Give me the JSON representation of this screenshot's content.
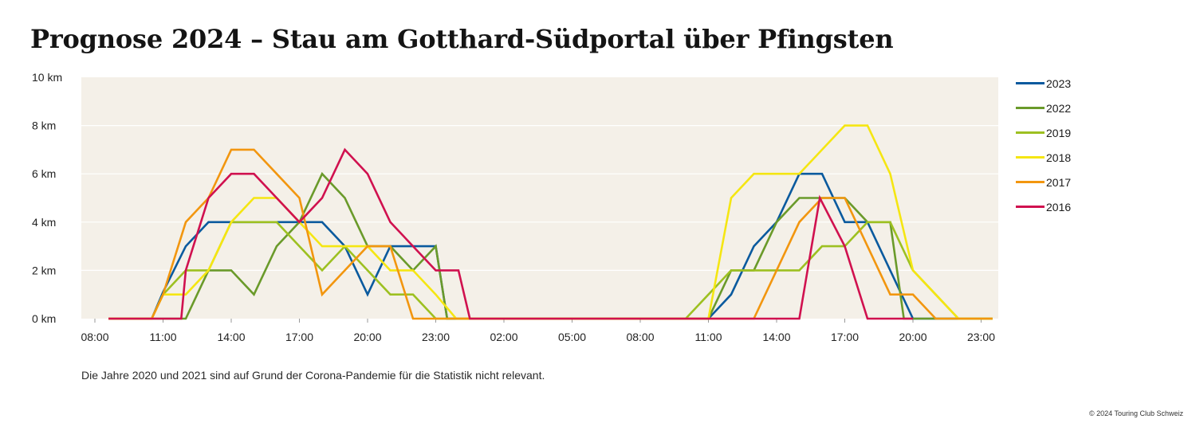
{
  "header": {
    "title": "Prognose 2024 – Stau am Gotthard-Südportal über Pfingsten"
  },
  "footnote": "Die Jahre 2020 und 2021 sind auf Grund der Corona-Pandemie für die Statistik nicht relevant.",
  "copyright": "© 2024 Touring Club Schweiz",
  "chart_data": {
    "type": "line",
    "title": "Prognose 2024 – Stau am Gotthard-Südportal über Pfingsten",
    "xlabel": "",
    "ylabel": "",
    "grid": "horizontal",
    "legend_position": "right",
    "background": "#f4f0e8",
    "x_hour_span": [
      8,
      47.5
    ],
    "x_ticks": [
      "08:00",
      "11:00",
      "14:00",
      "17:00",
      "20:00",
      "23:00",
      "02:00",
      "05:00",
      "08:00",
      "11:00",
      "14:00",
      "17:00",
      "20:00",
      "23:00"
    ],
    "x_tick_hours": [
      8,
      11,
      14,
      17,
      20,
      23,
      26,
      29,
      32,
      35,
      38,
      41,
      44,
      47
    ],
    "y_ticks": [
      "0 km",
      "2 km",
      "4 km",
      "6 km",
      "8 km",
      "10 km"
    ],
    "y_tick_values": [
      0,
      2,
      4,
      6,
      8,
      10
    ],
    "ylim": [
      0,
      10
    ],
    "series": [
      {
        "name": "2023",
        "color": "#0a5a9e",
        "points": [
          [
            8.6,
            0
          ],
          [
            10.5,
            0
          ],
          [
            11,
            1.1
          ],
          [
            12,
            3
          ],
          [
            13,
            4
          ],
          [
            14,
            4
          ],
          [
            15,
            4
          ],
          [
            16,
            4
          ],
          [
            17,
            4
          ],
          [
            18,
            4
          ],
          [
            19,
            3
          ],
          [
            20,
            1
          ],
          [
            21,
            3
          ],
          [
            22,
            3
          ],
          [
            23,
            3
          ],
          [
            23.5,
            0
          ],
          [
            35,
            0
          ],
          [
            36,
            1
          ],
          [
            37,
            3
          ],
          [
            38,
            4
          ],
          [
            39,
            6
          ],
          [
            40,
            6
          ],
          [
            41,
            4
          ],
          [
            42,
            4
          ],
          [
            43,
            2
          ],
          [
            44,
            0
          ],
          [
            47.5,
            0
          ]
        ]
      },
      {
        "name": "2022",
        "color": "#6a9a2a",
        "points": [
          [
            8.6,
            0
          ],
          [
            12,
            0
          ],
          [
            13,
            2
          ],
          [
            14,
            2
          ],
          [
            15,
            1
          ],
          [
            16,
            3
          ],
          [
            17,
            4
          ],
          [
            18,
            6
          ],
          [
            19,
            5
          ],
          [
            20,
            3
          ],
          [
            21,
            3
          ],
          [
            22,
            2
          ],
          [
            23,
            3
          ],
          [
            23.5,
            0
          ],
          [
            35,
            0
          ],
          [
            36,
            2
          ],
          [
            37,
            2
          ],
          [
            38,
            4
          ],
          [
            39,
            5
          ],
          [
            40,
            5
          ],
          [
            41,
            5
          ],
          [
            42,
            4
          ],
          [
            43,
            4
          ],
          [
            43.6,
            0
          ],
          [
            47.5,
            0
          ]
        ]
      },
      {
        "name": "2019",
        "color": "#9dc021",
        "points": [
          [
            8.6,
            0
          ],
          [
            10.5,
            0
          ],
          [
            11,
            1
          ],
          [
            12,
            2
          ],
          [
            13,
            2
          ],
          [
            14,
            4
          ],
          [
            15,
            4
          ],
          [
            16,
            4
          ],
          [
            17,
            3
          ],
          [
            18,
            2
          ],
          [
            19,
            3
          ],
          [
            20,
            2
          ],
          [
            21,
            1
          ],
          [
            22,
            1
          ],
          [
            23,
            0
          ],
          [
            34,
            0
          ],
          [
            35,
            1
          ],
          [
            36,
            2
          ],
          [
            37,
            2
          ],
          [
            38,
            2
          ],
          [
            39,
            2
          ],
          [
            40,
            3
          ],
          [
            41,
            3
          ],
          [
            42,
            4
          ],
          [
            43,
            4
          ],
          [
            44,
            2
          ],
          [
            45,
            1
          ],
          [
            46,
            0
          ],
          [
            47.5,
            0
          ]
        ]
      },
      {
        "name": "2018",
        "color": "#f5e612",
        "points": [
          [
            8.6,
            0
          ],
          [
            10.5,
            0
          ],
          [
            11,
            1
          ],
          [
            12,
            1
          ],
          [
            13,
            2
          ],
          [
            14,
            4
          ],
          [
            15,
            5
          ],
          [
            16,
            5
          ],
          [
            17,
            4
          ],
          [
            18,
            3
          ],
          [
            19,
            3
          ],
          [
            20,
            3
          ],
          [
            21,
            2
          ],
          [
            22,
            2
          ],
          [
            23,
            1
          ],
          [
            23.9,
            0
          ],
          [
            35,
            0
          ],
          [
            36,
            5
          ],
          [
            37,
            6
          ],
          [
            38,
            6
          ],
          [
            39,
            6
          ],
          [
            40,
            7
          ],
          [
            41,
            8
          ],
          [
            42,
            8
          ],
          [
            43,
            6
          ],
          [
            44,
            2
          ],
          [
            45,
            1
          ],
          [
            46,
            0
          ],
          [
            47.5,
            0
          ]
        ]
      },
      {
        "name": "2017",
        "color": "#f2960f",
        "points": [
          [
            8.6,
            0
          ],
          [
            10.5,
            0
          ],
          [
            11,
            1
          ],
          [
            12,
            4
          ],
          [
            13,
            5
          ],
          [
            14,
            7
          ],
          [
            15,
            7
          ],
          [
            16,
            6
          ],
          [
            17,
            5
          ],
          [
            18,
            1
          ],
          [
            19,
            2
          ],
          [
            20,
            3
          ],
          [
            21,
            3
          ],
          [
            22,
            0
          ],
          [
            23.5,
            0
          ],
          [
            37,
            0
          ],
          [
            38,
            2
          ],
          [
            39,
            4
          ],
          [
            40,
            5
          ],
          [
            41,
            5
          ],
          [
            42,
            3
          ],
          [
            43,
            1
          ],
          [
            44,
            1
          ],
          [
            45,
            0
          ],
          [
            47.5,
            0
          ]
        ]
      },
      {
        "name": "2016",
        "color": "#d0114f",
        "points": [
          [
            8.6,
            0
          ],
          [
            11.8,
            0
          ],
          [
            12,
            2
          ],
          [
            13,
            5
          ],
          [
            14,
            6
          ],
          [
            15,
            6
          ],
          [
            16,
            5
          ],
          [
            17,
            4
          ],
          [
            18,
            5
          ],
          [
            19,
            7
          ],
          [
            20,
            6
          ],
          [
            21,
            4
          ],
          [
            22,
            3
          ],
          [
            23,
            2
          ],
          [
            24,
            2
          ],
          [
            24.5,
            0
          ],
          [
            39,
            0
          ],
          [
            39.9,
            5
          ],
          [
            41,
            3
          ],
          [
            42,
            0
          ],
          [
            44,
            0
          ]
        ]
      }
    ]
  }
}
